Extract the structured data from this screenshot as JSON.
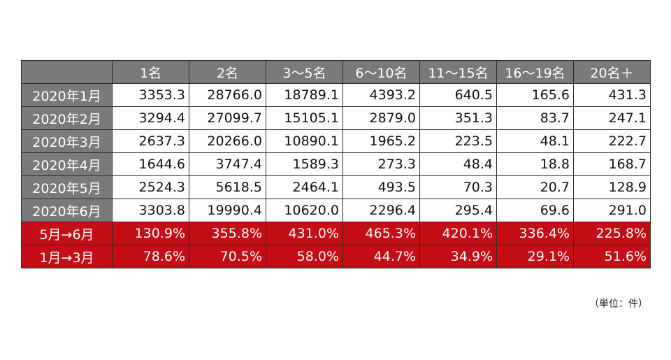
{
  "chart_data": {
    "type": "table",
    "columns": [
      "1名",
      "2名",
      "3〜5名",
      "6〜10名",
      "11〜15名",
      "16〜19名",
      "20名＋"
    ],
    "rows": [
      {
        "label": "2020年1月",
        "values": [
          "3353.3",
          "28766.0",
          "18789.1",
          "4393.2",
          "640.5",
          "165.6",
          "431.3"
        ]
      },
      {
        "label": "2020年2月",
        "values": [
          "3294.4",
          "27099.7",
          "15105.1",
          "2879.0",
          "351.3",
          "83.7",
          "247.1"
        ]
      },
      {
        "label": "2020年3月",
        "values": [
          "2637.3",
          "20266.0",
          "10890.1",
          "1965.2",
          "223.5",
          "48.1",
          "222.7"
        ]
      },
      {
        "label": "2020年4月",
        "values": [
          "1644.6",
          "3747.4",
          "1589.3",
          "273.3",
          "48.4",
          "18.8",
          "168.7"
        ]
      },
      {
        "label": "2020年5月",
        "values": [
          "2524.3",
          "5618.5",
          "2464.1",
          "493.5",
          "70.3",
          "20.7",
          "128.9"
        ]
      },
      {
        "label": "2020年6月",
        "values": [
          "3303.8",
          "19990.4",
          "10620.0",
          "2296.4",
          "295.4",
          "69.6",
          "291.0"
        ]
      }
    ],
    "ratio_rows": [
      {
        "label": "5月→6月",
        "values": [
          "130.9%",
          "355.8%",
          "431.0%",
          "465.3%",
          "420.1%",
          "336.4%",
          "225.8%"
        ]
      },
      {
        "label": "1月→3月",
        "values": [
          "78.6%",
          "70.5%",
          "58.0%",
          "44.7%",
          "34.9%",
          "29.1%",
          "51.6%"
        ]
      }
    ],
    "unit_note": "（単位：件）"
  },
  "colors": {
    "header_bg": "#7a7a7a",
    "header_text": "#ffffff",
    "ratio_bg": "#c40d15",
    "ratio_text": "#ffffff",
    "border": "#2b2b2b"
  }
}
